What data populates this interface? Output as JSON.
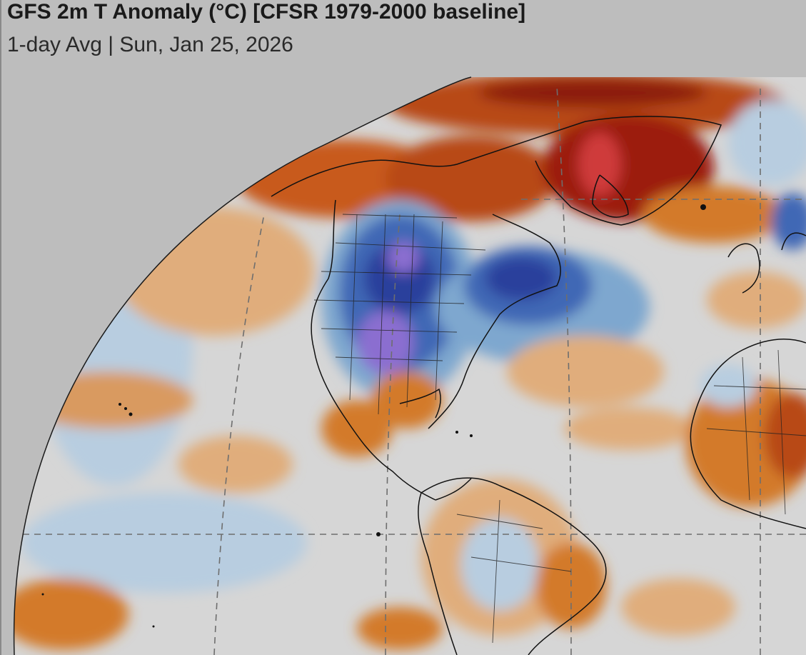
{
  "header": {
    "title": "GFS 2m T Anomaly (°C) [CFSR 1979-2000 baseline]",
    "subtitle": "1-day Avg | Sun, Jan 25, 2026"
  },
  "map": {
    "variable": "2m temperature anomaly",
    "projection": "orthographic-hemisphere",
    "colors": {
      "background": "#bdbdbd",
      "neutral": "#d6d6d6",
      "warm_light": "#e0ad7c",
      "warm": "#d37a2a",
      "warm_strong": "#b84a12",
      "hot": "#9c1c10",
      "very_hot": "#cf3b3b",
      "cool_light": "#b8cde0",
      "cool": "#7ea7cf",
      "cold": "#3f68b5",
      "very_cold": "#2b3f9c",
      "extreme_cold": "#8b6ed0",
      "coastline": "#111111",
      "gridline": "#6e6e6e"
    },
    "regions": [
      {
        "name": "arctic-warm-anomaly",
        "anomaly": "warm"
      },
      {
        "name": "greenland-hot-anomaly",
        "anomaly": "very-warm"
      },
      {
        "name": "north-america-cold-anomaly",
        "anomaly": "very-cold"
      },
      {
        "name": "atlantic-cold-anomaly",
        "anomaly": "cold"
      },
      {
        "name": "gulf-warm-anomaly",
        "anomaly": "warm"
      },
      {
        "name": "africa-warm-anomaly",
        "anomaly": "warm"
      },
      {
        "name": "south-america-mixed-anomaly",
        "anomaly": "mixed"
      },
      {
        "name": "pacific-mixed-anomaly",
        "anomaly": "mixed"
      }
    ]
  }
}
